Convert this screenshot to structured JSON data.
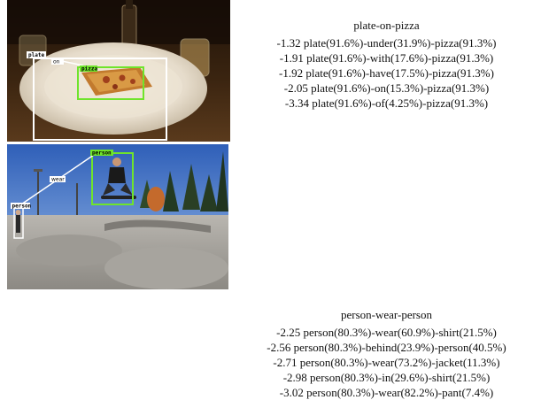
{
  "example_a": {
    "title": "plate-on-pizza",
    "labels": {
      "plate": "plate",
      "on": "on",
      "pizza": "pizza"
    },
    "lines": [
      "-1.32 plate(91.6%)-under(31.9%)-pizza(91.3%)",
      "-1.91 plate(91.6%)-with(17.6%)-pizza(91.3%)",
      "-1.92 plate(91.6%)-have(17.5%)-pizza(91.3%)",
      "-2.05 plate(91.6%)-on(15.3%)-pizza(91.3%)",
      "-3.34 plate(91.6%)-of(4.25%)-pizza(91.3%)"
    ]
  },
  "example_b": {
    "title": "person-wear-person",
    "labels": {
      "person_small": "person",
      "wear": "wear",
      "person_main": "person"
    },
    "lines": [
      "-2.25 person(80.3%)-wear(60.9%)-shirt(21.5%)",
      "-2.56 person(80.3%)-behind(23.9%)-person(40.5%)",
      "-2.71 person(80.3%)-wear(73.2%)-jacket(11.3%)",
      "-2.98 person(80.3%)-in(29.6%)-shirt(21.5%)",
      "-3.02 person(80.3%)-wear(82.2%)-pant(7.4%)"
    ]
  },
  "colors": {
    "subject_box": "#ffffff",
    "object_box": "#6fe42b",
    "edge": "#ffffff"
  }
}
